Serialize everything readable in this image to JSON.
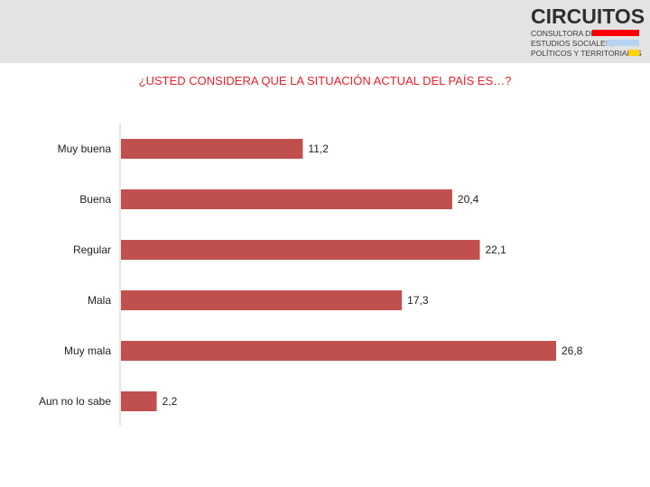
{
  "logo": {
    "name": "CIRCUITOS",
    "line1": "CONSULTORA DE",
    "line2": "ESTUDIOS SOCIALES,",
    "line3": "POLÍTICOS Y TERRITORIALES",
    "stripe_colors": [
      "#ff0000",
      "#b7d3f2",
      "#ffd200"
    ]
  },
  "colors": {
    "bar": "#c0504d",
    "axis": "#cccccc",
    "text": "#222222"
  },
  "chart_data": {
    "type": "bar",
    "orientation": "horizontal",
    "title": "¿USTED CONSIDERA QUE LA SITUACIÓN ACTUAL DEL PAÍS ES…?",
    "categories": [
      "Muy buena",
      "Buena",
      "Regular",
      "Mala",
      "Muy mala",
      "Aun no lo sabe"
    ],
    "values": [
      11.2,
      20.4,
      22.1,
      17.3,
      26.8,
      2.2
    ],
    "value_labels": [
      "11,2",
      "20,4",
      "22,1",
      "17,3",
      "26,8",
      "2,2"
    ],
    "xlim": [
      0,
      26.8
    ],
    "grid": false,
    "legend": "none"
  }
}
